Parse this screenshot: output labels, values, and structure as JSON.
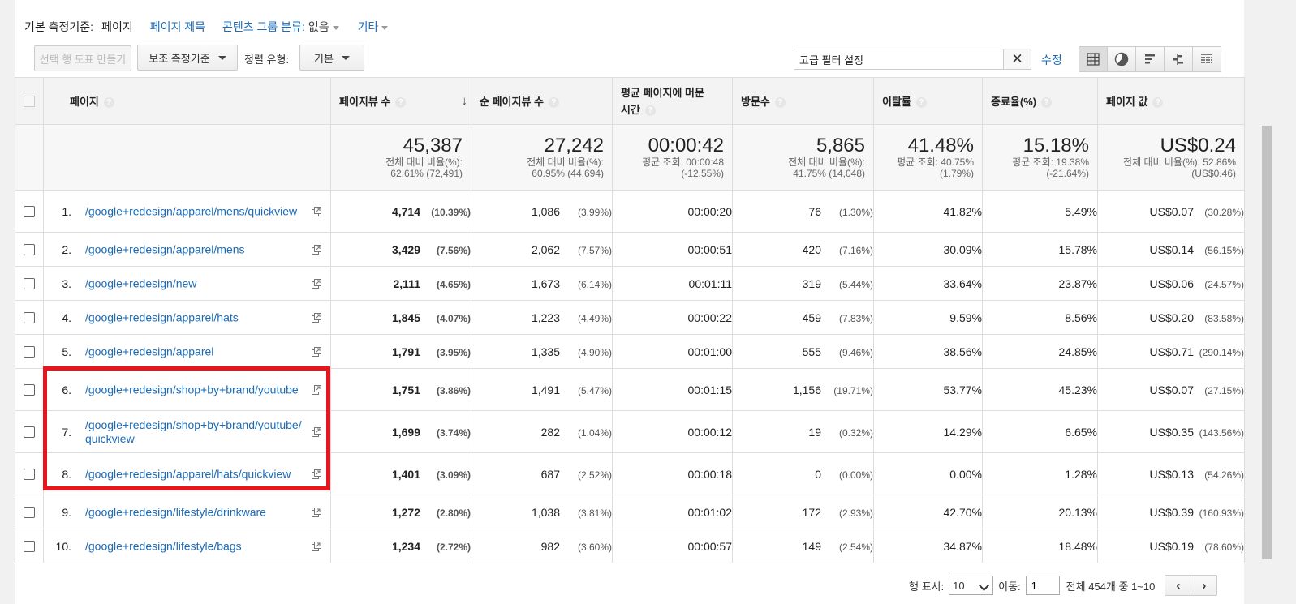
{
  "dimension_bar": {
    "label": "기본 측정기준:",
    "current": "페이지",
    "page_title": "페이지 제목",
    "content_group_label": "콘텐츠 그룹 분류:",
    "content_group_value": "없음",
    "other": "기타"
  },
  "toolbar": {
    "plot_rows": "선택 행 도표 만들기",
    "secondary_dimension": "보조 측정기준",
    "sort_type_label": "정렬 유형:",
    "sort_type_value": "기본",
    "filter_value": "고급 필터 설정",
    "edit": "수정",
    "view_icons": [
      "table-view-icon",
      "pie-view-icon",
      "performance-view-icon",
      "comparison-view-icon",
      "pivot-view-icon"
    ]
  },
  "table": {
    "headers": {
      "page": "페이지",
      "pageviews": "페이지뷰 수",
      "unique_pageviews": "순 페이지뷰 수",
      "avg_time": "평균 페이지에 머문 시간",
      "entrances": "방문수",
      "bounce_rate": "이탈률",
      "exit_rate": "종료율(%)",
      "page_value": "페이지 값"
    },
    "totals": {
      "pageviews": {
        "big": "45,387",
        "l1": "전체 대비 비율(%):",
        "l2": "62.61% (72,491)"
      },
      "unique_pageviews": {
        "big": "27,242",
        "l1": "전체 대비 비율(%):",
        "l2": "60.95% (44,694)"
      },
      "avg_time": {
        "big": "00:00:42",
        "l1": "평균 조회: 00:00:48",
        "l2": "(-12.55%)"
      },
      "entrances": {
        "big": "5,865",
        "l1": "전체 대비 비율(%):",
        "l2": "41.75% (14,048)"
      },
      "bounce_rate": {
        "big": "41.48%",
        "l1": "평균 조회: 40.75%",
        "l2": "(1.79%)"
      },
      "exit_rate": {
        "big": "15.18%",
        "l1": "평균 조회: 19.38%",
        "l2": "(-21.64%)"
      },
      "page_value": {
        "big": "US$0.24",
        "l1": "전체 대비 비율(%): 52.86%",
        "l2": "(US$0.46)"
      }
    },
    "rows": [
      {
        "idx": "1.",
        "page": "/google+redesign/apparel/mens/quickview",
        "pv": "4,714",
        "pv_pct": "(10.39%)",
        "upv": "1,086",
        "upv_pct": "(3.99%)",
        "time": "00:00:20",
        "ent": "76",
        "ent_pct": "(1.30%)",
        "bounce": "41.82%",
        "exit": "5.49%",
        "val": "US$0.07",
        "val_pct": "(30.28%)"
      },
      {
        "idx": "2.",
        "page": "/google+redesign/apparel/mens",
        "pv": "3,429",
        "pv_pct": "(7.56%)",
        "upv": "2,062",
        "upv_pct": "(7.57%)",
        "time": "00:00:51",
        "ent": "420",
        "ent_pct": "(7.16%)",
        "bounce": "30.09%",
        "exit": "15.78%",
        "val": "US$0.14",
        "val_pct": "(56.15%)"
      },
      {
        "idx": "3.",
        "page": "/google+redesign/new",
        "pv": "2,111",
        "pv_pct": "(4.65%)",
        "upv": "1,673",
        "upv_pct": "(6.14%)",
        "time": "00:01:11",
        "ent": "319",
        "ent_pct": "(5.44%)",
        "bounce": "33.64%",
        "exit": "23.87%",
        "val": "US$0.06",
        "val_pct": "(24.57%)"
      },
      {
        "idx": "4.",
        "page": "/google+redesign/apparel/hats",
        "pv": "1,845",
        "pv_pct": "(4.07%)",
        "upv": "1,223",
        "upv_pct": "(4.49%)",
        "time": "00:00:22",
        "ent": "459",
        "ent_pct": "(7.83%)",
        "bounce": "9.59%",
        "exit": "8.56%",
        "val": "US$0.20",
        "val_pct": "(83.58%)"
      },
      {
        "idx": "5.",
        "page": "/google+redesign/apparel",
        "pv": "1,791",
        "pv_pct": "(3.95%)",
        "upv": "1,335",
        "upv_pct": "(4.90%)",
        "time": "00:01:00",
        "ent": "555",
        "ent_pct": "(9.46%)",
        "bounce": "38.56%",
        "exit": "24.85%",
        "val": "US$0.71",
        "val_pct": "(290.14%)"
      },
      {
        "idx": "6.",
        "page": "/google+redesign/shop+by+brand/youtube",
        "pv": "1,751",
        "pv_pct": "(3.86%)",
        "upv": "1,491",
        "upv_pct": "(5.47%)",
        "time": "00:01:15",
        "ent": "1,156",
        "ent_pct": "(19.71%)",
        "bounce": "53.77%",
        "exit": "45.23%",
        "val": "US$0.07",
        "val_pct": "(27.15%)"
      },
      {
        "idx": "7.",
        "page": "/google+redesign/shop+by+brand/youtube/quickview",
        "pv": "1,699",
        "pv_pct": "(3.74%)",
        "upv": "282",
        "upv_pct": "(1.04%)",
        "time": "00:00:12",
        "ent": "19",
        "ent_pct": "(0.32%)",
        "bounce": "14.29%",
        "exit": "6.65%",
        "val": "US$0.35",
        "val_pct": "(143.56%)"
      },
      {
        "idx": "8.",
        "page": "/google+redesign/apparel/hats/quickview",
        "pv": "1,401",
        "pv_pct": "(3.09%)",
        "upv": "687",
        "upv_pct": "(2.52%)",
        "time": "00:00:18",
        "ent": "0",
        "ent_pct": "(0.00%)",
        "bounce": "0.00%",
        "exit": "1.28%",
        "val": "US$0.13",
        "val_pct": "(54.26%)"
      },
      {
        "idx": "9.",
        "page": "/google+redesign/lifestyle/drinkware",
        "pv": "1,272",
        "pv_pct": "(2.80%)",
        "upv": "1,038",
        "upv_pct": "(3.81%)",
        "time": "00:01:02",
        "ent": "172",
        "ent_pct": "(2.93%)",
        "bounce": "42.70%",
        "exit": "20.13%",
        "val": "US$0.39",
        "val_pct": "(160.93%)"
      },
      {
        "idx": "10.",
        "page": "/google+redesign/lifestyle/bags",
        "pv": "1,234",
        "pv_pct": "(2.72%)",
        "upv": "982",
        "upv_pct": "(3.60%)",
        "time": "00:00:57",
        "ent": "149",
        "ent_pct": "(2.54%)",
        "bounce": "34.87%",
        "exit": "18.48%",
        "val": "US$0.19",
        "val_pct": "(78.60%)"
      }
    ]
  },
  "footer": {
    "rows_label": "행 표시:",
    "rows_value": "10",
    "goto_label": "이동:",
    "goto_value": "1",
    "range": "전체 454개 중 1~10",
    "prev": "‹",
    "next": "›"
  },
  "colors": {
    "link": "#1a6bb8",
    "highlight": "#e8161c",
    "header_bg": "#f3f3f3"
  }
}
